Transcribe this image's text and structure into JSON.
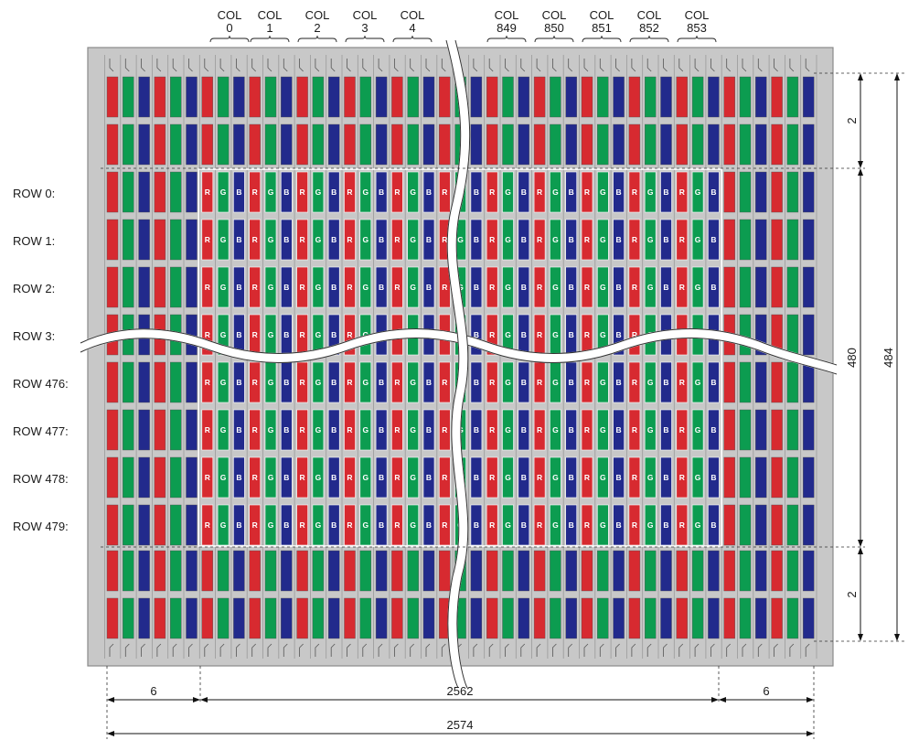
{
  "columns": {
    "left": [
      {
        "top": "COL",
        "num": "0"
      },
      {
        "top": "COL",
        "num": "1"
      },
      {
        "top": "COL",
        "num": "2"
      },
      {
        "top": "COL",
        "num": "3"
      },
      {
        "top": "COL",
        "num": "4"
      }
    ],
    "right": [
      {
        "top": "COL",
        "num": "849"
      },
      {
        "top": "COL",
        "num": "850"
      },
      {
        "top": "COL",
        "num": "851"
      },
      {
        "top": "COL",
        "num": "852"
      },
      {
        "top": "COL",
        "num": "853"
      }
    ]
  },
  "rows": {
    "top": [
      "ROW 0:",
      "ROW 1:",
      "ROW 2:",
      "ROW 3:"
    ],
    "bottom": [
      "ROW 476:",
      "ROW 477:",
      "ROW 478:",
      "ROW 479:"
    ]
  },
  "subpixel_letters": [
    "R",
    "G",
    "B"
  ],
  "dimensions": {
    "left_dummy": "6",
    "active_width": "2562",
    "right_dummy": "6",
    "total_width": "2574",
    "top_dummy": "2",
    "active_height": "480",
    "bottom_dummy": "2",
    "total_height": "484"
  },
  "colors": {
    "red": "#d72a30",
    "green": "#0c9c50",
    "blue": "#222a8c",
    "panel": "#c8c8c8",
    "panel_border": "#8a8a8a"
  }
}
